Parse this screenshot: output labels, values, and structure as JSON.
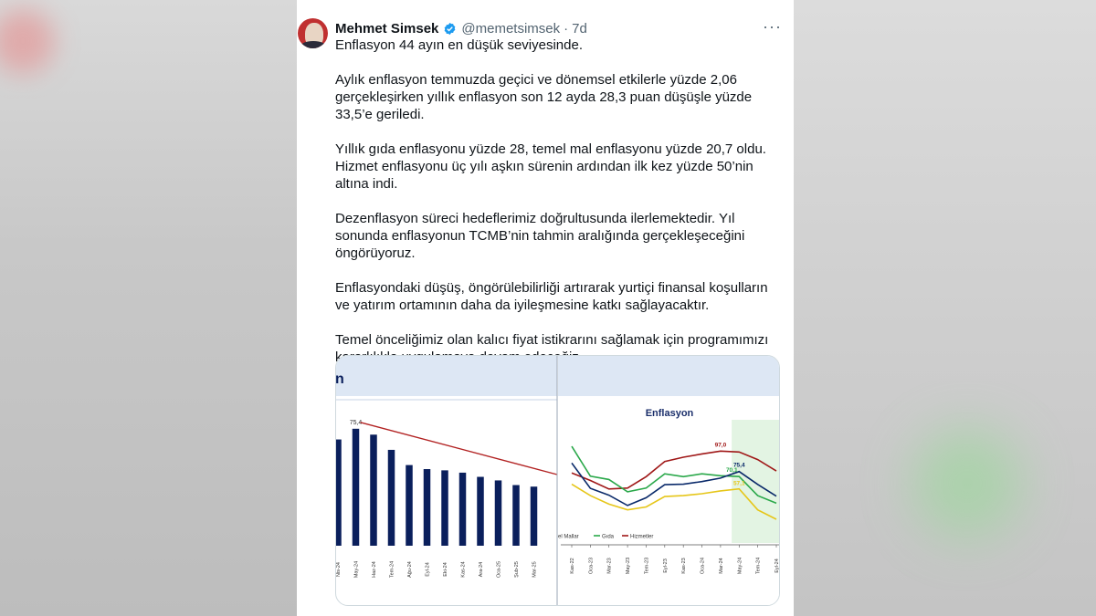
{
  "tweet": {
    "author_name": "Mehmet Simsek",
    "handle": "@memetsimsek",
    "separator": "·",
    "time": "7d",
    "more_label": "···",
    "paragraphs": [
      "Enflasyon 44 ayın en düşük seviyesinde.",
      "Aylık enflasyon temmuzda geçici ve dönemsel etkilerle yüzde 2,06 gerçekleşirken yıllık enflasyon son 12 ayda 28,3 puan düşüşle yüzde 33,5’e geriledi.",
      "Yıllık gıda enflasyonu yüzde 28, temel mal enflasyonu yüzde 20,7 oldu. Hizmet enflasyonu üç yılı aşkın sürenin ardından ilk kez yüzde 50’nin altına indi.",
      "Dezenflasyon süreci hedeflerimiz doğrultusunda ilerlemektedir. Yıl sonunda enflasyonun TCMB’nin tahmin aralığında gerçekleşeceğini öngörüyoruz.",
      "Enflasyondaki düşüş, öngörülebilirliği artırarak yurtiçi finansal koşulların ve yatırım ortamının daha da iyileşmesine katkı sağlayacaktır.",
      "Temel önceliğimiz olan kalıcı fiyat istikrarını sağlamak için programımızı kararlılıkla uygulamaya devam edeceğiz."
    ]
  },
  "colors": {
    "verified": "#1d9bf0",
    "bar": "#0a1f5c",
    "trend": "#b22222",
    "hizmetler": "#a01818",
    "gida": "#2aa84a",
    "temel_mallar": "#e6c619",
    "genel": "#0a2a6a",
    "header_bg": "#dde7f4",
    "forecast_bg": "#e3f4e3"
  },
  "icons": [
    "verified-badge-icon",
    "more-options-icon",
    "avatar-image"
  ],
  "chart_data": [
    {
      "type": "bar",
      "title": "n",
      "categories": [
        "Nis-24",
        "May-24",
        "Haz-24",
        "Tem-24",
        "Ağu-24",
        "Eyl-24",
        "Eki-24",
        "Kas-24",
        "Ara-24",
        "Oca-25",
        "Şub-25",
        "Mar-25"
      ],
      "values": [
        68.5,
        75.4,
        71.6,
        61.8,
        52.0,
        49.4,
        48.6,
        47.1,
        44.4,
        42.1,
        39.1,
        38.1
      ],
      "data_labels": [
        {
          "category": "May-24",
          "text": "75,4"
        }
      ],
      "ylim": [
        0,
        80
      ],
      "trend_line": true
    },
    {
      "type": "line",
      "title": "Enflasyon",
      "x": [
        "Kas-22",
        "Oca-23",
        "Mar-23",
        "May-23",
        "Tem-23",
        "Eyl-23",
        "Kas-23",
        "Oca-24",
        "Mar-24",
        "May-24",
        "Tem-24",
        "Eyl-24"
      ],
      "series": [
        {
          "name": "Hizmetler",
          "values": [
            74.0,
            66.0,
            57.0,
            58.0,
            70.0,
            86.0,
            90.5,
            94.0,
            97.0,
            96.0,
            88.0,
            76.0
          ]
        },
        {
          "name": "Gıda",
          "values": [
            102.0,
            70.5,
            67.0,
            54.0,
            58.0,
            73.0,
            70.0,
            73.0,
            71.0,
            70.1,
            50.0,
            42.0
          ]
        },
        {
          "name": "",
          "values": [
            84.4,
            57.7,
            50.5,
            39.6,
            47.8,
            61.5,
            62.0,
            64.8,
            68.5,
            75.4,
            61.8,
            49.4
          ]
        },
        {
          "name": "Temel Mallar",
          "values": [
            62.0,
            50.0,
            41.0,
            35.0,
            38.0,
            49.0,
            50.0,
            52.0,
            55.0,
            57.1,
            35.0,
            25.0
          ]
        }
      ],
      "data_labels": [
        "97,0",
        "75,4",
        "70,1",
        "57,1"
      ],
      "legend": [
        "el Mallar",
        "Gıda",
        "Hizmetler"
      ],
      "legend_position": "bottom",
      "ylim": [
        0,
        130
      ],
      "forecast_shading": true
    }
  ]
}
